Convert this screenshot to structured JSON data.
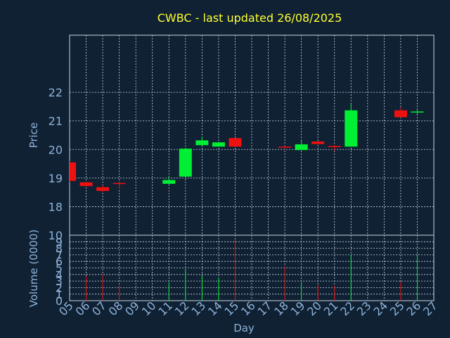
{
  "title": "CWBC - last updated 26/08/2025",
  "colors": {
    "background": "#0f2133",
    "frame": "#c8d6e6",
    "grid": "#c8d6e6",
    "title": "#ffff33",
    "axis_text": "#8fb3d9",
    "up": "#00ee33",
    "down": "#ee1111"
  },
  "chart_data": [
    {
      "type": "candlestick",
      "title": "CWBC - last updated 26/08/2025",
      "ylabel": "Price",
      "yticks": [
        18,
        19,
        20,
        21,
        22
      ],
      "ylim": [
        17,
        24
      ],
      "x_range": [
        5,
        27
      ],
      "grid": true,
      "candles": [
        {
          "day": 5,
          "open": 19.55,
          "high": 19.6,
          "low": 18.85,
          "close": 18.9
        },
        {
          "day": 6,
          "open": 18.85,
          "high": 18.88,
          "low": 18.7,
          "close": 18.72
        },
        {
          "day": 7,
          "open": 18.68,
          "high": 18.74,
          "low": 18.5,
          "close": 18.55
        },
        {
          "day": 8,
          "open": 18.83,
          "high": 18.88,
          "low": 18.62,
          "close": 18.81
        },
        {
          "day": 11,
          "open": 18.8,
          "high": 19.08,
          "low": 18.76,
          "close": 18.93
        },
        {
          "day": 12,
          "open": 19.05,
          "high": 20.05,
          "low": 19.05,
          "close": 20.03
        },
        {
          "day": 13,
          "open": 20.15,
          "high": 20.45,
          "low": 20.15,
          "close": 20.32
        },
        {
          "day": 14,
          "open": 20.1,
          "high": 20.27,
          "low": 20.1,
          "close": 20.25
        },
        {
          "day": 15,
          "open": 20.4,
          "high": 20.4,
          "low": 20.08,
          "close": 20.1
        },
        {
          "day": 18,
          "open": 20.1,
          "high": 20.13,
          "low": 20.0,
          "close": 20.07
        },
        {
          "day": 19,
          "open": 19.98,
          "high": 20.35,
          "low": 19.98,
          "close": 20.18
        },
        {
          "day": 20,
          "open": 20.28,
          "high": 20.3,
          "low": 20.17,
          "close": 20.19
        },
        {
          "day": 21,
          "open": 20.12,
          "high": 20.16,
          "low": 19.95,
          "close": 20.09
        },
        {
          "day": 22,
          "open": 20.1,
          "high": 21.62,
          "low": 20.1,
          "close": 21.37
        },
        {
          "day": 25,
          "open": 21.37,
          "high": 21.48,
          "low": 21.12,
          "close": 21.13
        },
        {
          "day": 26,
          "open": 21.3,
          "high": 21.42,
          "low": 21.22,
          "close": 21.33
        }
      ]
    },
    {
      "type": "bar",
      "ylabel": "Volume (0000)",
      "xlabel": "Day",
      "yticks": [
        0,
        1,
        2,
        3,
        4,
        5,
        6,
        7,
        8,
        9,
        10
      ],
      "ylim": [
        0,
        10
      ],
      "x_range": [
        5,
        27
      ],
      "xticks": [
        "05",
        "06",
        "07",
        "08",
        "09",
        "10",
        "11",
        "12",
        "13",
        "14",
        "15",
        "16",
        "17",
        "18",
        "19",
        "20",
        "21",
        "22",
        "23",
        "24",
        "25",
        "26",
        "27"
      ],
      "volumes": [
        {
          "day": 6,
          "value": 3.8,
          "dir": "down"
        },
        {
          "day": 7,
          "value": 4.0,
          "dir": "down"
        },
        {
          "day": 8,
          "value": 2.3,
          "dir": "down"
        },
        {
          "day": 11,
          "value": 2.8,
          "dir": "up"
        },
        {
          "day": 12,
          "value": 4.7,
          "dir": "up"
        },
        {
          "day": 13,
          "value": 3.8,
          "dir": "up"
        },
        {
          "day": 14,
          "value": 3.5,
          "dir": "up"
        },
        {
          "day": 15,
          "value": 9.4,
          "dir": "down"
        },
        {
          "day": 18,
          "value": 5.3,
          "dir": "down"
        },
        {
          "day": 19,
          "value": 2.8,
          "dir": "up"
        },
        {
          "day": 20,
          "value": 2.4,
          "dir": "down"
        },
        {
          "day": 21,
          "value": 2.3,
          "dir": "down"
        },
        {
          "day": 22,
          "value": 7.0,
          "dir": "up"
        },
        {
          "day": 25,
          "value": 2.9,
          "dir": "down"
        },
        {
          "day": 26,
          "value": 7.1,
          "dir": "up"
        }
      ]
    }
  ]
}
